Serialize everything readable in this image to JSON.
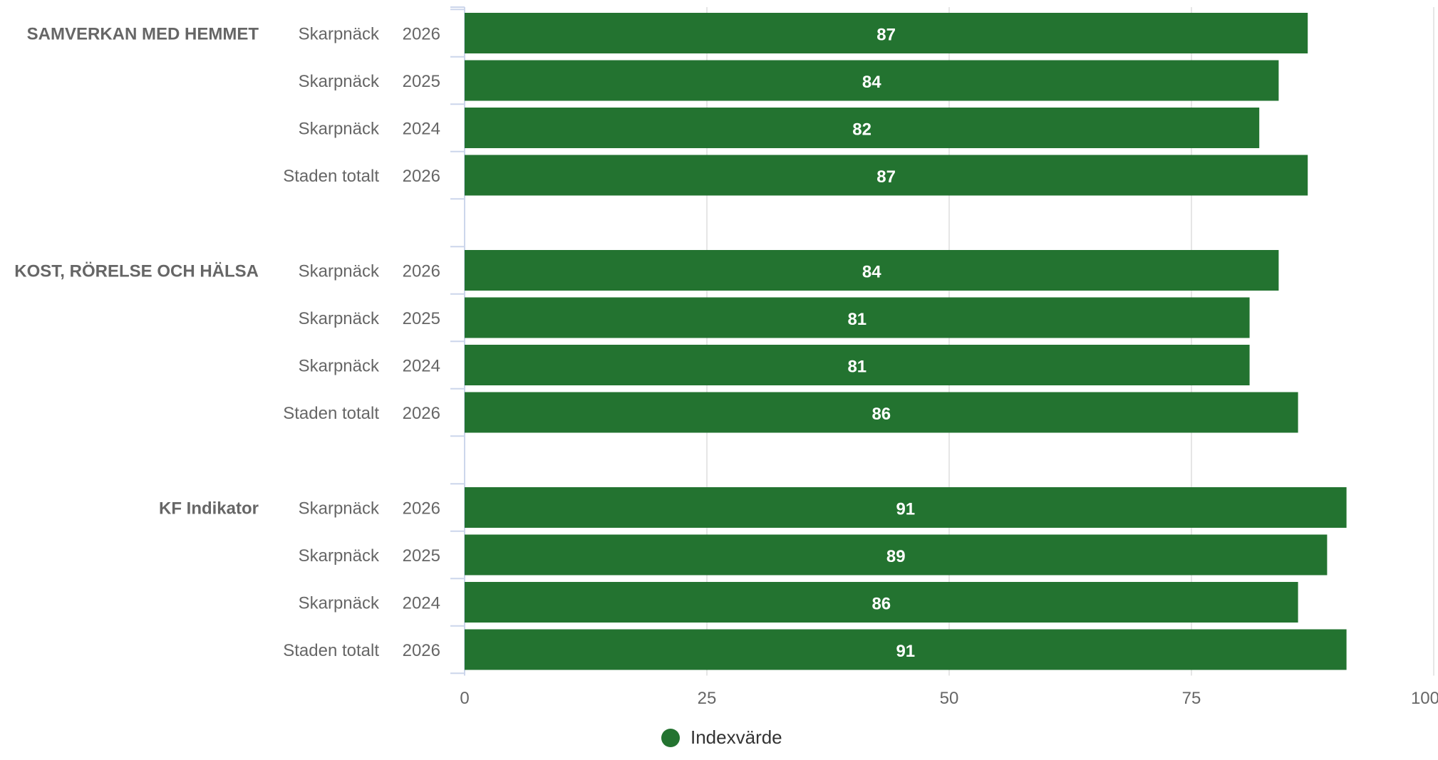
{
  "chart_data": {
    "type": "bar",
    "orientation": "horizontal",
    "title": "",
    "xlabel": "",
    "ylabel": "",
    "xlim": [
      0,
      100
    ],
    "x_ticks": [
      "0",
      "25",
      "50",
      "75",
      "100"
    ],
    "grid": true,
    "legend": {
      "position": "bottom-center",
      "items": [
        {
          "name": "Indexvärde",
          "color": "#237330"
        }
      ]
    },
    "series": [
      {
        "name": "Indexvärde",
        "color": "#237330"
      }
    ],
    "groups": [
      {
        "label": "SAMVERKAN MED HEMMET",
        "rows": [
          {
            "unit": "Skarpnäck",
            "year": "2026",
            "value": 87
          },
          {
            "unit": "Skarpnäck",
            "year": "2025",
            "value": 84
          },
          {
            "unit": "Skarpnäck",
            "year": "2024",
            "value": 82
          },
          {
            "unit": "Staden totalt",
            "year": "2026",
            "value": 87
          }
        ]
      },
      {
        "label": "KOST, RÖRELSE OCH HÄLSA",
        "rows": [
          {
            "unit": "Skarpnäck",
            "year": "2026",
            "value": 84
          },
          {
            "unit": "Skarpnäck",
            "year": "2025",
            "value": 81
          },
          {
            "unit": "Skarpnäck",
            "year": "2024",
            "value": 81
          },
          {
            "unit": "Staden totalt",
            "year": "2026",
            "value": 86
          }
        ]
      },
      {
        "label": "KF Indikator",
        "rows": [
          {
            "unit": "Skarpnäck",
            "year": "2026",
            "value": 91
          },
          {
            "unit": "Skarpnäck",
            "year": "2025",
            "value": 89
          },
          {
            "unit": "Skarpnäck",
            "year": "2024",
            "value": 86
          },
          {
            "unit": "Staden totalt",
            "year": "2026",
            "value": 91
          }
        ]
      }
    ],
    "colors": {
      "bar": "#237330",
      "grid": "#e6e6e6",
      "axis": "#ccd6eb",
      "text": "#666666",
      "data_label": "#ffffff"
    }
  }
}
